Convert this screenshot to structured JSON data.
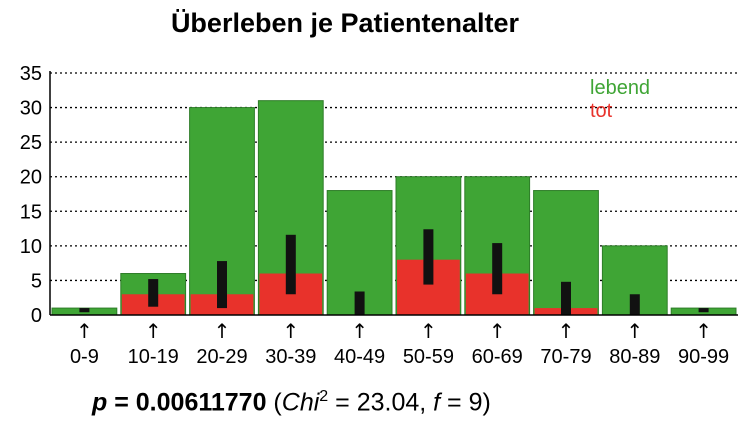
{
  "chart_data": {
    "type": "bar",
    "title": "Überleben je Patientenalter",
    "categories": [
      "0-9",
      "10-19",
      "20-29",
      "30-39",
      "40-49",
      "50-59",
      "60-69",
      "70-79",
      "80-89",
      "90-99"
    ],
    "series": [
      {
        "name": "lebend",
        "color": "#3fa535",
        "values": [
          1,
          3,
          27,
          25,
          18,
          12,
          14,
          17,
          10,
          1
        ]
      },
      {
        "name": "tot",
        "color": "#e8322b",
        "values": [
          0,
          3,
          3,
          6,
          0,
          8,
          6,
          1,
          0,
          0
        ]
      }
    ],
    "expected_tot": {
      "color": "#111111",
      "low": [
        0.4,
        1.2,
        1.0,
        3.0,
        0.0,
        4.4,
        3.0,
        0.0,
        0.0,
        0.4
      ],
      "high": [
        1.0,
        5.2,
        7.8,
        11.6,
        3.4,
        12.4,
        10.4,
        4.8,
        3.0,
        1.0
      ]
    },
    "y_ticks": [
      "0",
      "5",
      "10",
      "15",
      "20",
      "25",
      "30",
      "35"
    ],
    "ylim": [
      0,
      35
    ],
    "grid": true,
    "legend_position": "top-right",
    "tick_marker": "↑",
    "xlabel": "",
    "ylabel": ""
  },
  "stat": {
    "p_label": "p",
    "eq1": " = ",
    "p_value": "0.00611770",
    "open": " (",
    "chi_label": "Chi",
    "chi_exp": "2",
    "eq2": " = ",
    "chi_value": "23.04",
    "sep": ", ",
    "f_label": "f",
    "eq3": " = ",
    "f_value": "9",
    "close": ")"
  }
}
